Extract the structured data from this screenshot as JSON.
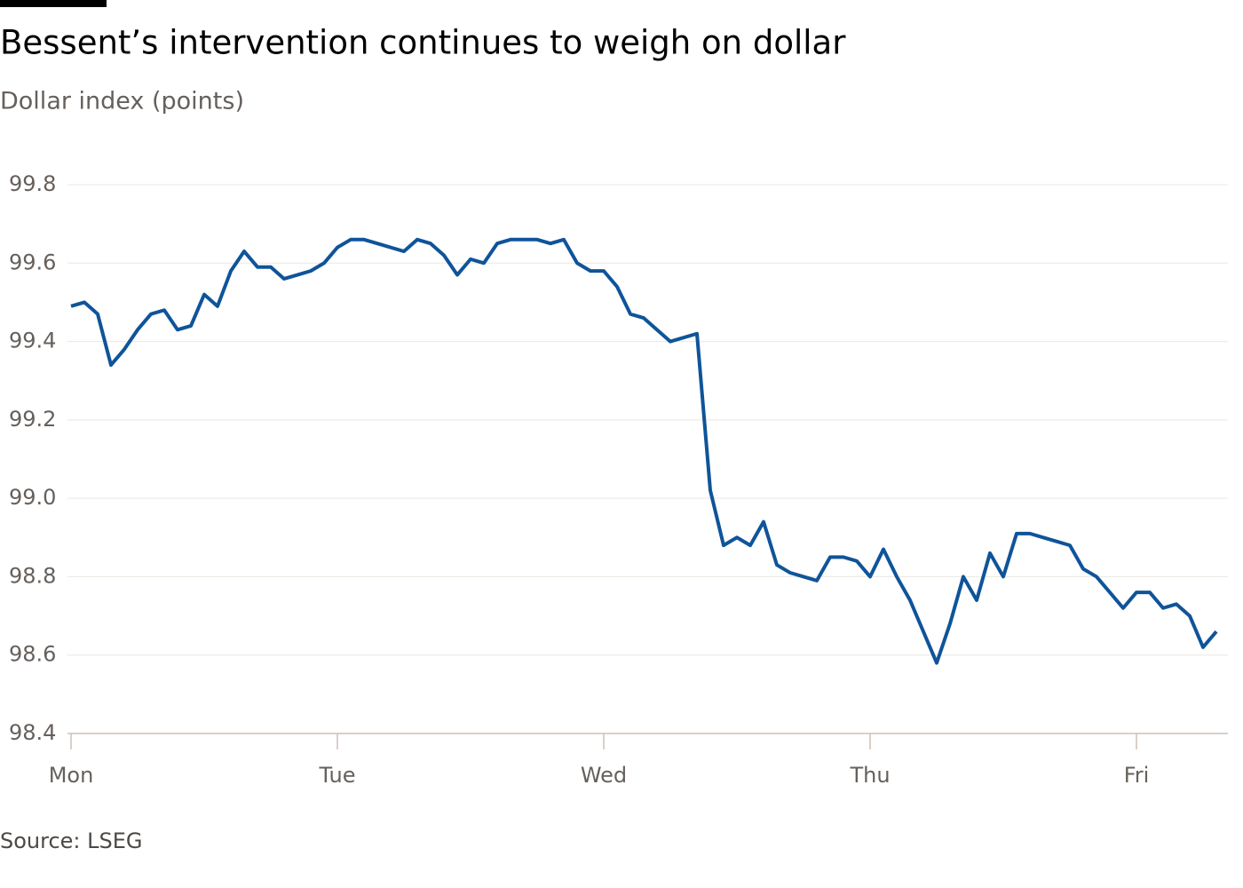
{
  "chart_data": {
    "type": "line",
    "title": "Bessent’s intervention continues to weigh on dollar",
    "subtitle": "Dollar index (points)",
    "source": "Source: LSEG",
    "categories": [
      "Mon",
      null,
      null,
      null,
      null,
      null,
      null,
      null,
      null,
      null,
      null,
      null,
      null,
      null,
      null,
      null,
      null,
      null,
      null,
      null,
      "Tue",
      null,
      null,
      null,
      null,
      null,
      null,
      null,
      null,
      null,
      null,
      null,
      null,
      null,
      null,
      null,
      null,
      null,
      null,
      null,
      "Wed",
      null,
      null,
      null,
      null,
      null,
      null,
      null,
      null,
      null,
      null,
      null,
      null,
      null,
      null,
      null,
      null,
      null,
      null,
      null,
      "Thu",
      null,
      null,
      null,
      null,
      null,
      null,
      null,
      null,
      null,
      null,
      null,
      null,
      null,
      null,
      null,
      null,
      null,
      null,
      null,
      "Fri",
      null,
      null,
      null,
      null,
      null,
      null
    ],
    "series": [
      {
        "name": "Dollar index",
        "color": "#0f5499",
        "values": [
          99.49,
          99.5,
          99.47,
          99.34,
          99.38,
          99.43,
          99.47,
          99.48,
          99.43,
          99.44,
          99.52,
          99.49,
          99.58,
          99.63,
          99.59,
          99.59,
          99.56,
          99.57,
          99.58,
          99.6,
          99.64,
          99.66,
          99.66,
          99.65,
          99.64,
          99.63,
          99.66,
          99.65,
          99.62,
          99.57,
          99.61,
          99.6,
          99.65,
          99.66,
          99.66,
          99.66,
          99.65,
          99.66,
          99.6,
          99.58,
          99.58,
          99.54,
          99.47,
          99.46,
          99.43,
          99.4,
          99.41,
          99.42,
          99.02,
          98.88,
          98.9,
          98.88,
          98.94,
          98.83,
          98.81,
          98.8,
          98.79,
          98.85,
          98.85,
          98.84,
          98.8,
          98.87,
          98.8,
          98.74,
          98.66,
          98.58,
          98.68,
          98.8,
          98.74,
          98.86,
          98.8,
          98.91,
          98.91,
          98.9,
          98.89,
          98.88,
          98.82,
          98.8,
          98.76,
          98.72,
          98.76,
          98.76,
          98.72,
          98.73,
          98.7,
          98.62,
          98.66
        ]
      }
    ],
    "ylim": [
      98.4,
      99.8
    ],
    "yticks": [
      {
        "value": 98.4,
        "label": "98.4"
      },
      98.6,
      98.8,
      {
        "value": 99.0,
        "label": "99.0"
      },
      99.2,
      99.4,
      99.6,
      99.8
    ],
    "grid": true
  }
}
